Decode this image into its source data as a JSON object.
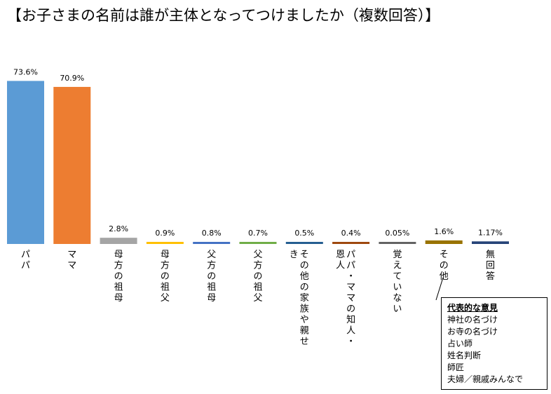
{
  "chart_data": {
    "type": "bar",
    "title": "【お子さまの名前は誰が主体となってつけましたか（複数回答）】",
    "categories": [
      "パパ",
      "ママ",
      "母方の祖母",
      "母方の祖父",
      "父方の祖母",
      "父方の祖父",
      "その他の家族や親せき",
      "パパ・ママの知人・恩人",
      "覚えていない",
      "その他",
      "無回答"
    ],
    "values": [
      73.6,
      70.9,
      2.8,
      0.9,
      0.8,
      0.7,
      0.5,
      0.4,
      0.05,
      1.6,
      1.17
    ],
    "value_labels": [
      "73.6%",
      "70.9%",
      "2.8%",
      "0.9%",
      "0.8%",
      "0.7%",
      "0.5%",
      "0.4%",
      "0.05%",
      "1.6%",
      "1.17%"
    ],
    "colors": [
      "#5B9BD5",
      "#ED7D31",
      "#A5A5A5",
      "#FFC000",
      "#4472C4",
      "#70AD47",
      "#255E91",
      "#9E480E",
      "#636363",
      "#997300",
      "#264478"
    ],
    "ylim": [
      0,
      80
    ],
    "grid": false,
    "legend": "none"
  },
  "note": {
    "title": "代表的な意見",
    "items": [
      "神社の名づけ",
      "お寺の名づけ",
      "占い師",
      "姓名判断",
      "師匠",
      "夫婦／親戚みんなで"
    ]
  }
}
